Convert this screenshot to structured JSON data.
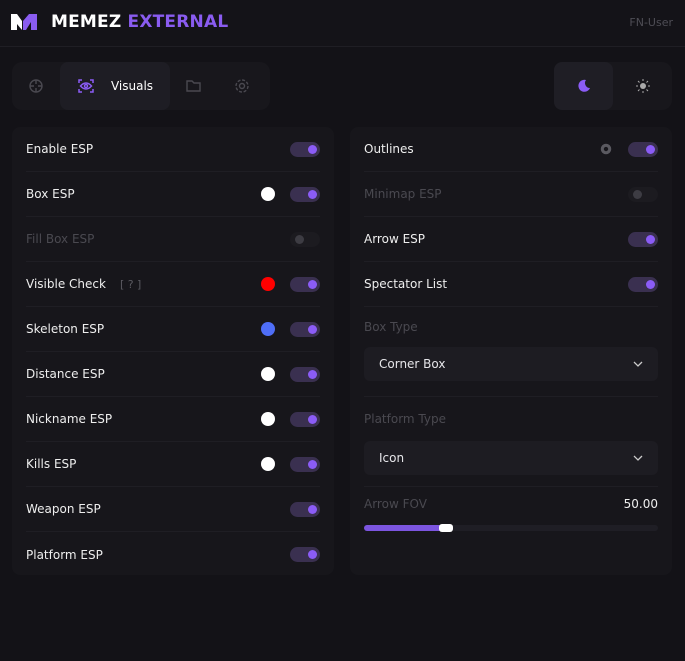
{
  "header": {
    "title_a": "MEMEZ",
    "title_b": "EXTERNAL",
    "user": "FN-User"
  },
  "tabs": [
    {
      "icon": "crosshair-icon"
    },
    {
      "icon": "eye-icon",
      "label": "Visuals",
      "active": true
    },
    {
      "icon": "folder-icon"
    },
    {
      "icon": "gear-icon"
    }
  ],
  "theme": {
    "dark": "moon-icon",
    "light": "sun-icon",
    "selected": "dark"
  },
  "left": [
    {
      "label": "Enable ESP",
      "on": true
    },
    {
      "label": "Box ESP",
      "color": "#ffffff",
      "on": true
    },
    {
      "label": "Fill Box ESP",
      "on": false,
      "disabled": true
    },
    {
      "label": "Visible Check",
      "help": "[ ? ]",
      "color": "#ff0000",
      "on": true
    },
    {
      "label": "Skeleton ESP",
      "color": "#4f6ef7",
      "on": true
    },
    {
      "label": "Distance ESP",
      "color": "#ffffff",
      "on": true
    },
    {
      "label": "Nickname ESP",
      "color": "#ffffff",
      "on": true
    },
    {
      "label": "Kills ESP",
      "color": "#ffffff",
      "on": true
    },
    {
      "label": "Weapon ESP",
      "on": true
    },
    {
      "label": "Platform ESP",
      "on": true
    }
  ],
  "right": {
    "outlines": "Outlines",
    "minimap": "Minimap ESP",
    "arrow": "Arrow ESP",
    "spectator": "Spectator List",
    "box_type_label": "Box Type",
    "box_type_value": "Corner Box",
    "platform_label": "Platform Type",
    "platform_value": "Icon",
    "fov_label": "Arrow FOV",
    "fov_value": "50.00",
    "fov_fraction": 0.28
  },
  "accent": "#8b5cf6"
}
